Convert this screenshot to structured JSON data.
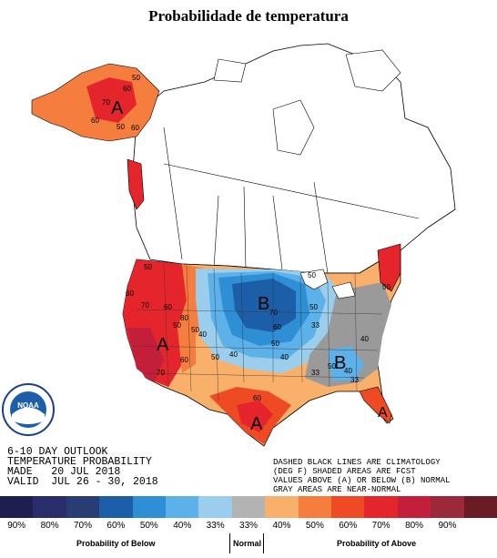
{
  "title": "Probabilidade de temperatura",
  "map": {
    "markers": [
      {
        "id": "alaska-above",
        "label": "A"
      },
      {
        "id": "west-above",
        "label": "A"
      },
      {
        "id": "north-central-below",
        "label": "B"
      },
      {
        "id": "southeast-below",
        "label": "B"
      },
      {
        "id": "texas-above",
        "label": "A"
      },
      {
        "id": "florida-above",
        "label": "A"
      }
    ],
    "contour_labels": [
      "50",
      "60",
      "70",
      "60",
      "50",
      "60",
      "50",
      "60",
      "70",
      "60",
      "50",
      "80",
      "50",
      "60",
      "70",
      "50",
      "40",
      "50",
      "60",
      "70",
      "50",
      "40",
      "33",
      "50",
      "40",
      "33",
      "60",
      "40",
      "50",
      "33",
      "40",
      "50"
    ]
  },
  "outlook": {
    "line1": "6-10 DAY OUTLOOK",
    "line2": "TEMPERATURE PROBABILITY",
    "line3": "MADE   20 JUL 2018",
    "line4": "VALID  JUL 26 - 30, 2018"
  },
  "notes": {
    "line1": "DASHED BLACK LINES ARE CLIMATOLOGY",
    "line2": "(DEG F) SHADED AREAS ARE FCST",
    "line3": "VALUES ABOVE (A) OR BELOW (B) NORMAL",
    "line4": "GRAY AREAS ARE NEAR-NORMAL"
  },
  "legend": {
    "swatches": [
      {
        "label": "90%",
        "color": "#1e1f4e"
      },
      {
        "label": "80%",
        "color": "#2a2d6b"
      },
      {
        "label": "70%",
        "color": "#273d73"
      },
      {
        "label": "60%",
        "color": "#1c5ea7"
      },
      {
        "label": "50%",
        "color": "#2e8fd5"
      },
      {
        "label": "40%",
        "color": "#5cb1e8"
      },
      {
        "label": "33%",
        "color": "#9bcdec"
      },
      {
        "label": "33%",
        "color": "#b3b3b3"
      },
      {
        "label": "40%",
        "color": "#f8b06b"
      },
      {
        "label": "50%",
        "color": "#f57d3e"
      },
      {
        "label": "60%",
        "color": "#ee4a24"
      },
      {
        "label": "70%",
        "color": "#e4262c"
      },
      {
        "label": "80%",
        "color": "#c31f3b"
      },
      {
        "label": "90%",
        "color": "#9a2a3a"
      },
      {
        "label": "",
        "color": "#6a1c25"
      }
    ],
    "caption_below": "Probability of Below",
    "caption_normal": "Normal",
    "caption_above": "Probability of Above"
  },
  "logo": {
    "text": "NOAA"
  },
  "colors": {
    "blue_dark": "#1c5ea7",
    "blue_mid": "#2e8fd5",
    "blue_light": "#5cb1e8",
    "blue_pale": "#9bcdec",
    "gray": "#9a9a9a",
    "orange_light": "#f8b06b",
    "orange": "#f57d3e",
    "red_orange": "#ee4a24",
    "red": "#e4262c",
    "crimson": "#c31f3b"
  }
}
